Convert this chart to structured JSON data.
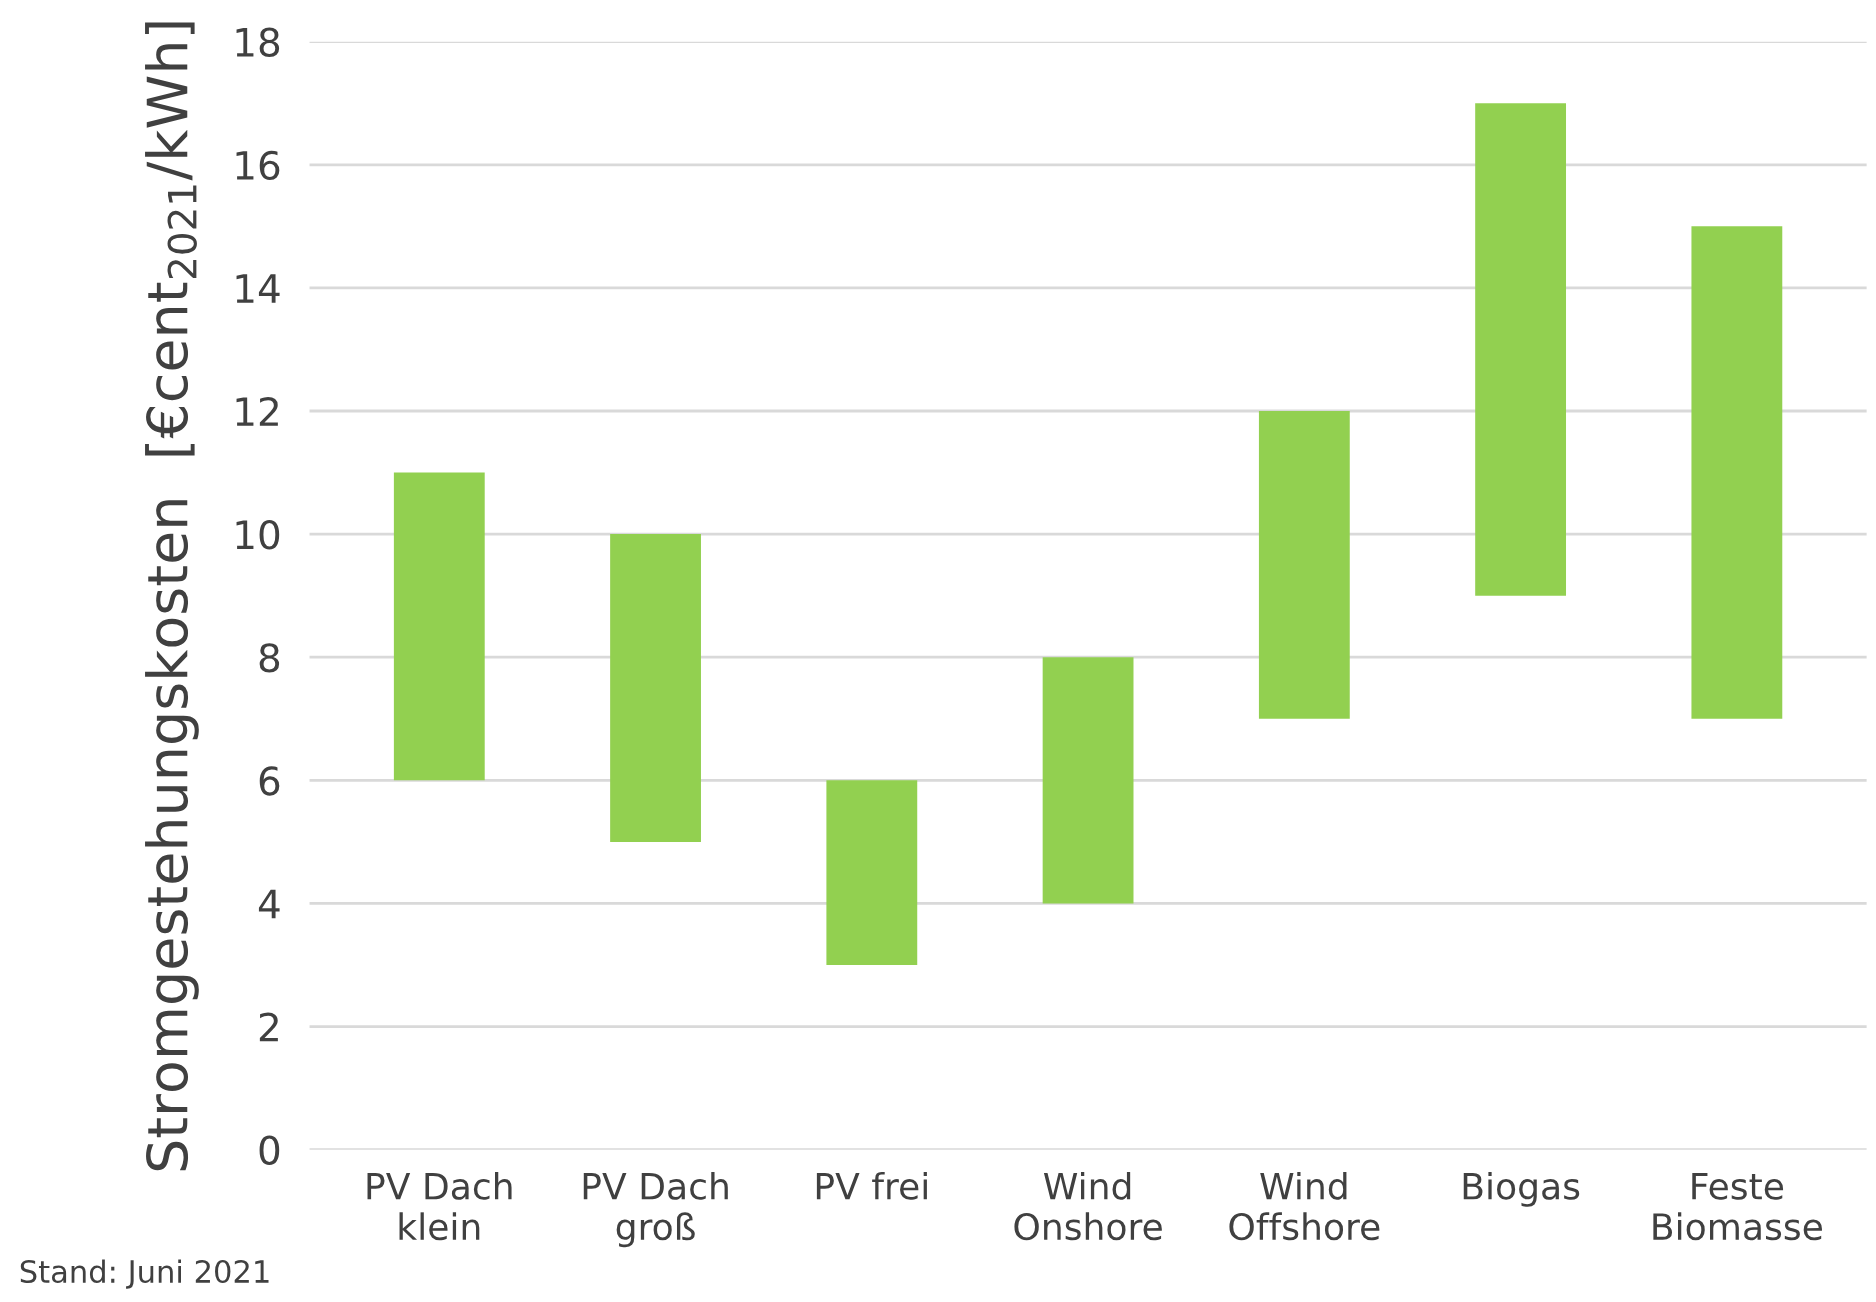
{
  "chart_data": {
    "type": "bar",
    "categories": [
      "PV Dach\nklein",
      "PV Dach\ngroß",
      "PV frei",
      "Wind\nOnshore",
      "Wind\nOffshore",
      "Biogas",
      "Feste\nBiomasse"
    ],
    "base": [
      6,
      5,
      3,
      4,
      7,
      9,
      7
    ],
    "values": [
      5,
      5,
      3,
      4,
      5,
      8,
      8
    ],
    "color": "#92d050",
    "ylabel": "Stromgestehungskosten  [€cent$_{2021}$/kWh]",
    "ylim": [
      0,
      18
    ],
    "yticks": [
      0,
      2,
      4,
      6,
      8,
      10,
      12,
      14,
      16,
      18
    ],
    "grid": "y",
    "annotations": [
      "Stand: Juni 2021"
    ]
  }
}
